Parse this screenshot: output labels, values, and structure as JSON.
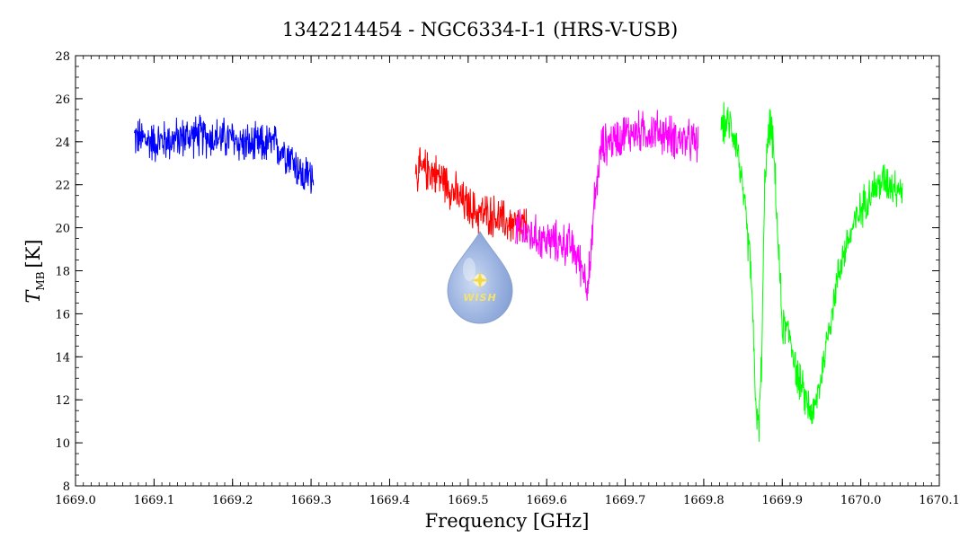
{
  "chart_data": {
    "type": "line",
    "title": "1342214454 - NGC6334-I-1 (HRS-V-USB)",
    "xlabel": "Frequency [GHz]",
    "ylabel": {
      "symbol": "T",
      "subscript": "MB",
      "unit": "[K]"
    },
    "xlim": [
      1669.0,
      1670.1
    ],
    "ylim": [
      8,
      28
    ],
    "xticks": [
      "1669.0",
      "1669.1",
      "1669.2",
      "1669.3",
      "1669.4",
      "1669.5",
      "1669.6",
      "1669.7",
      "1669.8",
      "1669.9",
      "1670.0",
      "1670.1"
    ],
    "yticks": [
      "8",
      "10",
      "12",
      "14",
      "16",
      "18",
      "20",
      "22",
      "24",
      "26",
      "28"
    ],
    "grid": false,
    "logo": {
      "text": "WISH"
    },
    "series": [
      {
        "color": "#0000ff",
        "x": [
          1669.075,
          1669.1,
          1669.125,
          1669.15,
          1669.175,
          1669.2,
          1669.225,
          1669.25,
          1669.27,
          1669.28,
          1669.29,
          1669.303
        ],
        "y": [
          24.2,
          24.0,
          24.1,
          24.3,
          24.2,
          24.1,
          23.8,
          23.9,
          23.5,
          23.0,
          22.3,
          22.6
        ],
        "noise": 0.8
      },
      {
        "color": "#ff0000",
        "x": [
          1669.433,
          1669.45,
          1669.47,
          1669.49,
          1669.51,
          1669.53,
          1669.55,
          1669.575
        ],
        "y": [
          22.6,
          22.7,
          22.2,
          21.3,
          20.7,
          20.6,
          20.2,
          20.0
        ],
        "noise": 0.8
      },
      {
        "color": "#ff00ff",
        "x": [
          1669.56,
          1669.6,
          1669.63,
          1669.645,
          1669.652,
          1669.657,
          1669.66,
          1669.665,
          1669.67,
          1669.7,
          1669.74,
          1669.77,
          1669.793
        ],
        "y": [
          19.9,
          19.4,
          19.2,
          18.2,
          17.4,
          18.6,
          21.0,
          22.4,
          23.8,
          24.4,
          24.5,
          24.1,
          23.9
        ],
        "noise": 0.8
      },
      {
        "color": "#00ff00",
        "x": [
          1669.822,
          1669.835,
          1669.843,
          1669.85,
          1669.86,
          1669.866,
          1669.87,
          1669.874,
          1669.878,
          1669.885,
          1669.89,
          1669.895,
          1669.9,
          1669.91,
          1669.92,
          1669.93,
          1669.94,
          1669.95,
          1669.96,
          1669.975,
          1669.99,
          1670.01,
          1670.03,
          1670.053
        ],
        "y": [
          24.8,
          24.8,
          23.8,
          21.5,
          18.2,
          12.0,
          10.5,
          14.2,
          22.6,
          25.0,
          23.0,
          19.0,
          15.5,
          15.0,
          13.0,
          12.0,
          11.3,
          13.2,
          15.5,
          18.5,
          20.0,
          21.6,
          22.2,
          21.8
        ],
        "noise": 0.75
      }
    ]
  }
}
